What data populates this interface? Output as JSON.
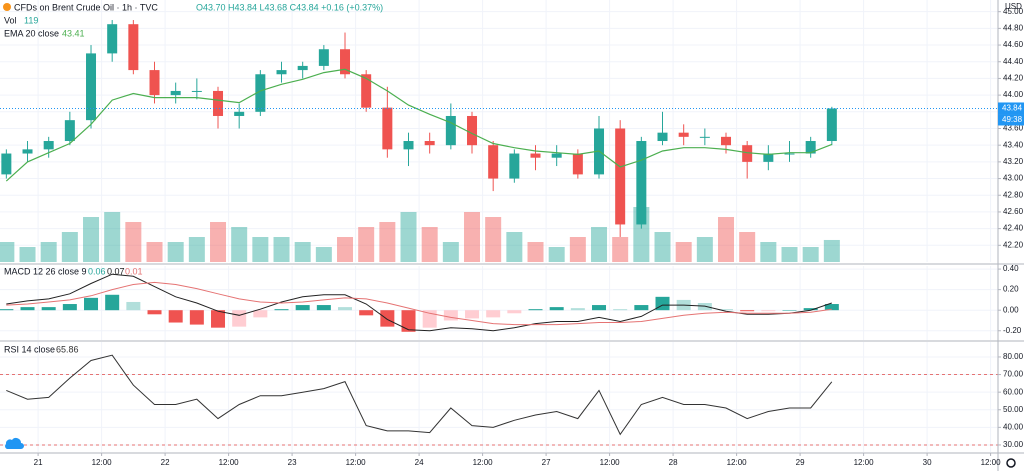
{
  "chart_data": [
    {
      "type": "candlestick",
      "title": "CFDs on Brent Crude Oil · 1h · TVC",
      "ohlc_legend": "O43.70 H43.84 L43.68 C43.84 +0.16 (+0.37%)",
      "x": [
        -6,
        -2,
        2,
        6,
        10,
        14,
        18,
        22,
        26,
        30,
        34,
        38,
        42,
        46,
        50,
        54,
        58,
        62,
        66,
        70,
        74,
        78,
        82,
        86,
        90,
        94,
        98,
        102,
        106,
        110,
        114,
        118,
        122,
        126,
        130,
        134,
        138,
        142,
        146,
        150
      ],
      "open": [
        43.05,
        43.3,
        43.35,
        43.45,
        43.7,
        44.5,
        44.85,
        44.3,
        44,
        44.05,
        44.05,
        43.75,
        43.8,
        44.25,
        44.3,
        44.35,
        44.55,
        44.25,
        43.85,
        43.35,
        43.45,
        43.4,
        43.75,
        43.4,
        43,
        43.3,
        43.25,
        43.3,
        43.05,
        43.6,
        42.45,
        43.45,
        43.55,
        43.5,
        43.5,
        43.4,
        43.2,
        43.3,
        43.3,
        43.45
      ],
      "high": [
        43.35,
        43.45,
        43.5,
        43.8,
        44.6,
        44.9,
        44.9,
        44.4,
        44.15,
        44.2,
        44.1,
        43.9,
        44.3,
        44.4,
        44.4,
        44.6,
        44.75,
        44.3,
        44.1,
        43.55,
        43.55,
        43.9,
        43.8,
        43.45,
        43.35,
        43.4,
        43.4,
        43.35,
        43.75,
        43.7,
        43.5,
        43.8,
        43.65,
        43.6,
        43.55,
        43.45,
        43.4,
        43.45,
        43.5,
        43.86
      ],
      "low": [
        43,
        43.2,
        43.25,
        43.4,
        43.6,
        44.4,
        44.25,
        43.9,
        43.9,
        43.95,
        43.6,
        43.6,
        43.75,
        44.15,
        44.2,
        44.3,
        44.2,
        43.8,
        43.25,
        43.15,
        43.3,
        43.35,
        43.3,
        42.85,
        42.95,
        43.1,
        43.15,
        43,
        43,
        42.3,
        42.4,
        43.4,
        43.4,
        43.4,
        43.3,
        43,
        43.1,
        43.2,
        43.25,
        43.4
      ],
      "close": [
        43.3,
        43.35,
        43.45,
        43.7,
        44.5,
        44.85,
        44.3,
        44,
        44.05,
        44.05,
        43.75,
        43.8,
        44.25,
        44.3,
        44.35,
        44.55,
        44.25,
        43.85,
        43.35,
        43.45,
        43.4,
        43.75,
        43.4,
        43,
        43.3,
        43.25,
        43.3,
        43.05,
        43.6,
        42.45,
        43.45,
        43.55,
        43.5,
        43.5,
        43.4,
        43.2,
        43.3,
        43.3,
        43.45,
        43.84
      ],
      "up_color": "#26a69a",
      "down_color": "#ef5350",
      "volume": {
        "name": "Vol",
        "values": [
          108,
          81,
          108,
          162,
          243,
          270,
          216,
          108,
          108,
          135,
          216,
          189,
          135,
          135,
          108,
          81,
          135,
          189,
          216,
          270,
          189,
          108,
          270,
          243,
          162,
          108,
          81,
          135,
          189,
          135,
          297,
          162,
          108,
          135,
          243,
          162,
          108,
          81,
          81,
          119
        ]
      },
      "series": [
        {
          "name": "EMA 20 close",
          "color": "#4caf50",
          "values": [
            42.97,
            43.2,
            43.31,
            43.42,
            43.65,
            43.94,
            44.02,
            43.97,
            43.97,
            43.97,
            43.94,
            43.91,
            44.05,
            44.13,
            44.19,
            44.27,
            44.31,
            44.2,
            44.05,
            43.88,
            43.77,
            43.67,
            43.54,
            43.42,
            43.37,
            43.33,
            43.31,
            43.29,
            43.33,
            43.14,
            43.22,
            43.33,
            43.37,
            43.37,
            43.35,
            43.31,
            43.29,
            43.31,
            43.31,
            43.41
          ]
        }
      ],
      "xlim": [
        -7.2,
        181.4
      ],
      "ylim": [
        42.0,
        45.14
      ],
      "yticks": [
        {
          "value": 42.2,
          "label": "42.20"
        },
        {
          "value": 42.4,
          "label": "42.40"
        },
        {
          "value": 42.6,
          "label": "42.60"
        },
        {
          "value": 42.8,
          "label": "42.80"
        },
        {
          "value": 43,
          "label": "43.00"
        },
        {
          "value": 43.2,
          "label": "43.20"
        },
        {
          "value": 43.4,
          "label": "43.40"
        },
        {
          "value": 43.6,
          "label": "43.60"
        },
        {
          "value": 43.8,
          "label": "43.80"
        },
        {
          "value": 44,
          "label": "44.00"
        },
        {
          "value": 44.2,
          "label": "44.20"
        },
        {
          "value": 44.4,
          "label": "44.40"
        },
        {
          "value": 44.6,
          "label": "44.60"
        },
        {
          "value": 44.8,
          "label": "44.80"
        },
        {
          "value": 45,
          "label": "45.00"
        }
      ],
      "currency": "USD",
      "last_price": 43.84,
      "countdown": "49:38",
      "grid": true
    },
    {
      "type": "macd",
      "title": "MACD 12 26 close 9",
      "x": [
        -6,
        -2,
        2,
        6,
        10,
        14,
        18,
        22,
        26,
        30,
        34,
        38,
        42,
        46,
        50,
        54,
        58,
        62,
        66,
        70,
        74,
        78,
        82,
        86,
        90,
        94,
        98,
        102,
        106,
        110,
        114,
        118,
        122,
        126,
        130,
        134,
        138,
        142,
        146,
        150
      ],
      "histogram": [
        0.01,
        0.03,
        0.03,
        0.06,
        0.12,
        0.15,
        0.08,
        -0.04,
        -0.12,
        -0.14,
        -0.17,
        -0.16,
        -0.07,
        0.01,
        0.05,
        0.05,
        0.03,
        -0.05,
        -0.16,
        -0.21,
        -0.17,
        -0.1,
        -0.08,
        -0.07,
        -0.03,
        0.01,
        0.03,
        0.02,
        0.05,
        0.01,
        0.05,
        0.13,
        0.1,
        0.07,
        0.01,
        -0.01,
        -0.01,
        0,
        0.02,
        0.06
      ],
      "macd": [
        0.06,
        0.09,
        0.11,
        0.16,
        0.26,
        0.35,
        0.33,
        0.23,
        0.13,
        0.07,
        -0.01,
        -0.05,
        0.01,
        0.08,
        0.13,
        0.15,
        0.15,
        0.06,
        -0.09,
        -0.19,
        -0.2,
        -0.17,
        -0.18,
        -0.2,
        -0.17,
        -0.13,
        -0.11,
        -0.11,
        -0.07,
        -0.11,
        -0.06,
        0.05,
        0.05,
        0.04,
        -0.01,
        -0.04,
        -0.04,
        -0.03,
        0,
        0.07
      ],
      "signal": [
        0.05,
        0.06,
        0.08,
        0.1,
        0.14,
        0.2,
        0.25,
        0.27,
        0.25,
        0.21,
        0.16,
        0.11,
        0.08,
        0.07,
        0.08,
        0.1,
        0.12,
        0.11,
        0.07,
        0.02,
        -0.03,
        -0.07,
        -0.1,
        -0.13,
        -0.14,
        -0.14,
        -0.14,
        -0.13,
        -0.12,
        -0.12,
        -0.11,
        -0.08,
        -0.05,
        -0.03,
        -0.02,
        -0.03,
        -0.03,
        -0.03,
        -0.02,
        0.01
      ],
      "macd_color": "#222222",
      "signal_color": "#e57373",
      "histogram_colors": [
        "#26a69a",
        "#b2dfdb",
        "#ffcdd2",
        "#ef5350"
      ],
      "xlim": [
        -7.2,
        181.4
      ],
      "ylim": [
        -0.29,
        0.43
      ],
      "yticks": [
        {
          "value": 0.4,
          "label": "0.40"
        },
        {
          "value": 0.2,
          "label": "0.20"
        },
        {
          "value": 0,
          "label": "0.00"
        },
        {
          "value": -0.2,
          "label": "-0.20"
        }
      ],
      "grid": true
    },
    {
      "type": "line",
      "title": "RSI 14 close",
      "x": [
        -6,
        -2,
        2,
        6,
        10,
        14,
        18,
        22,
        26,
        30,
        34,
        38,
        42,
        46,
        50,
        54,
        58,
        62,
        66,
        70,
        74,
        78,
        82,
        86,
        90,
        94,
        98,
        102,
        106,
        110,
        114,
        118,
        122,
        126,
        130,
        134,
        138,
        142,
        146,
        150
      ],
      "values": [
        61,
        56,
        57,
        68,
        78,
        81,
        64,
        53,
        53,
        56,
        45,
        53,
        58,
        58,
        60,
        62,
        66,
        41,
        38,
        38,
        37,
        51,
        41,
        40,
        44,
        47,
        49,
        45,
        61,
        36,
        53,
        57,
        53,
        53,
        51,
        45,
        49,
        51,
        51,
        65.86
      ],
      "color": "#333333",
      "levels": [
        70,
        30
      ],
      "level_color": "#e57373",
      "xlim": [
        -7.2,
        181.4
      ],
      "ylim": [
        26,
        88.5
      ],
      "yticks": [
        {
          "value": 30,
          "label": "30.00"
        },
        {
          "value": 40,
          "label": "40.00"
        },
        {
          "value": 50,
          "label": "50.00"
        },
        {
          "value": 60,
          "label": "60.00"
        },
        {
          "value": 70,
          "label": "70.00"
        },
        {
          "value": 80,
          "label": "80.00"
        }
      ],
      "xticks": [
        {
          "value": 0,
          "label": "21"
        },
        {
          "value": 12,
          "label": "12:00"
        },
        {
          "value": 24,
          "label": "22"
        },
        {
          "value": 36,
          "label": "12:00"
        },
        {
          "value": 48,
          "label": "23"
        },
        {
          "value": 60,
          "label": "12:00"
        },
        {
          "value": 72,
          "label": "24"
        },
        {
          "value": 84,
          "label": "12:00"
        },
        {
          "value": 96,
          "label": "27"
        },
        {
          "value": 108,
          "label": "12:00"
        },
        {
          "value": 120,
          "label": "28"
        },
        {
          "value": 132,
          "label": "12:00"
        },
        {
          "value": 144,
          "label": "29"
        },
        {
          "value": 156,
          "label": "12:00"
        },
        {
          "value": 168,
          "label": "30"
        },
        {
          "value": 180,
          "label": "12:00"
        }
      ],
      "grid": true
    }
  ]
}
